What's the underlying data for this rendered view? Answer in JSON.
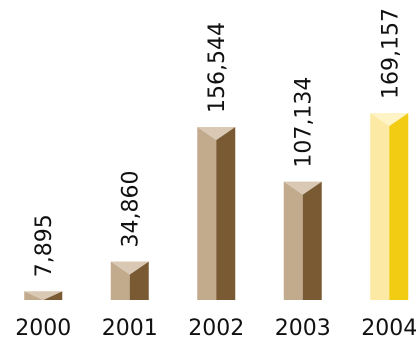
{
  "chart_data": {
    "type": "bar",
    "categories": [
      "2000",
      "2001",
      "2002",
      "2003",
      "2004"
    ],
    "values": [
      7895,
      34860,
      156544,
      107134,
      169157
    ],
    "value_labels": [
      "7,895",
      "34,860",
      "156,544",
      "107,134",
      "169,157"
    ],
    "highlight_index": 4,
    "title": "",
    "xlabel": "",
    "ylabel": "",
    "ylim": [
      0,
      180000
    ],
    "grid": false,
    "legend": "none",
    "colors": {
      "normal_front": "#C2AA8D",
      "normal_side": "#7A5A32",
      "normal_top": "#D9C8B4",
      "highlight_front": "#FCEAA4",
      "highlight_side": "#F2CC12",
      "highlight_top": "#FFF4C6"
    }
  }
}
